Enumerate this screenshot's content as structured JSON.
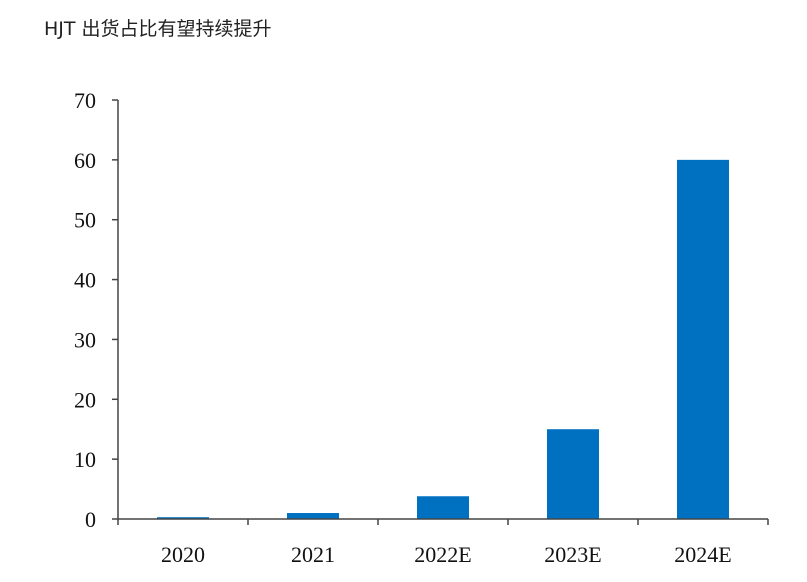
{
  "chart_data": {
    "type": "bar",
    "title": "HJT 出货占比有望持续提升",
    "categories": [
      "2020",
      "2021",
      "2022E",
      "2023E",
      "2024E"
    ],
    "values": [
      0.3,
      1,
      3.8,
      15,
      60
    ],
    "ylim": [
      0,
      70
    ],
    "yticks": [
      0,
      10,
      20,
      30,
      40,
      50,
      60,
      70
    ],
    "xlabel": "",
    "ylabel": "",
    "grid": false,
    "bar_color": "#0070C0",
    "axis_color": "#444444"
  }
}
